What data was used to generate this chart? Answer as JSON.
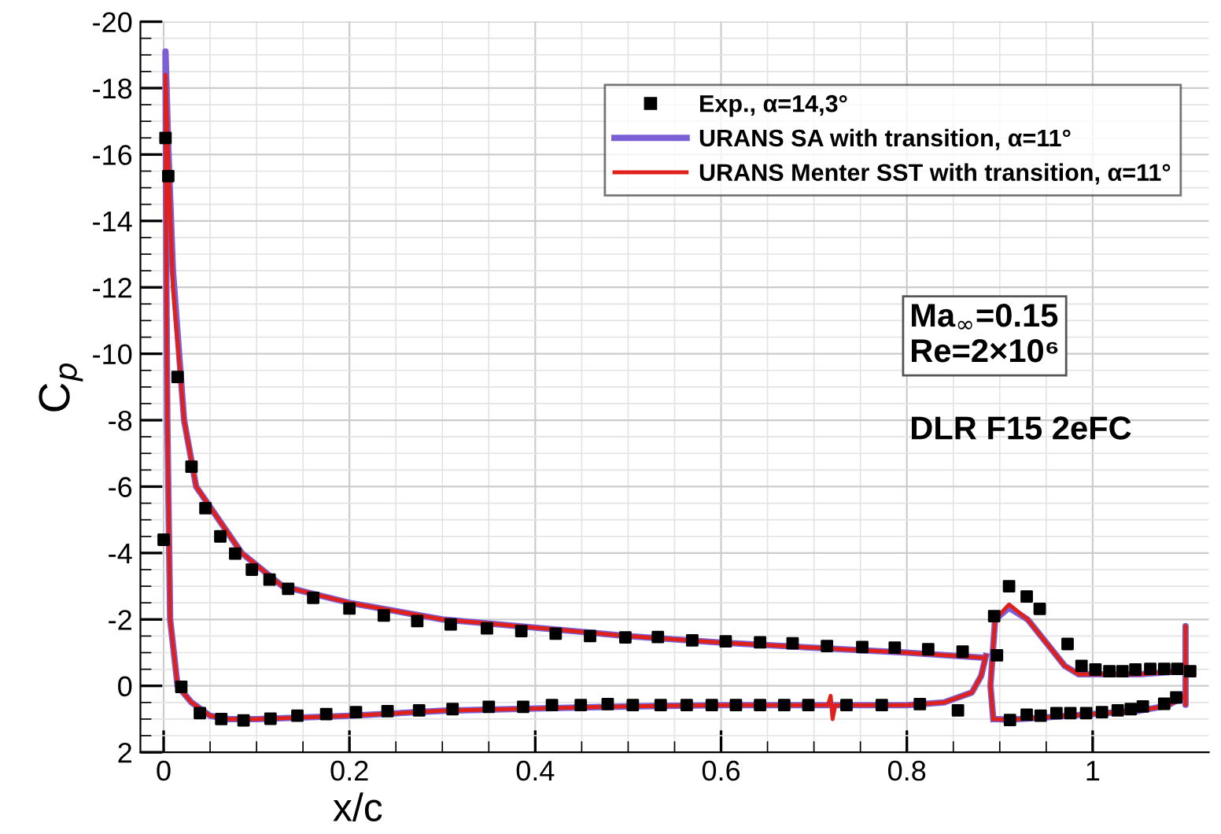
{
  "chart_data": {
    "type": "line",
    "xlabel": "x/c",
    "ylabel": "C$_{p}$",
    "xlim": [
      -0.025,
      1.125
    ],
    "ylim": [
      2,
      -20
    ],
    "xticks": [
      0,
      0.2,
      0.4,
      0.6,
      0.8,
      1
    ],
    "yticks": [
      -20,
      -18,
      -16,
      -14,
      -12,
      -10,
      -8,
      -6,
      -4,
      -2,
      0,
      2
    ],
    "grid": true,
    "legend": "top right",
    "annotations": [
      "Ma$_{∞}$=0.15\nRe=2×10⁶",
      "DLR F15 2eFC"
    ],
    "series": [
      {
        "name": "Exp., α=14,3°",
        "type": "scatter",
        "marker": "square",
        "color": "#000000",
        "x": [
          0.002,
          0.005,
          0.015,
          0.03,
          0.045,
          0.061,
          0.077,
          0.095,
          0.114,
          0.134,
          0.161,
          0.2,
          0.237,
          0.273,
          0.309,
          0.348,
          0.385,
          0.422,
          0.459,
          0.497,
          0.532,
          0.569,
          0.605,
          0.642,
          0.677,
          0.714,
          0.752,
          0.787,
          0.823,
          0.86,
          0.897,
          0.894,
          0.91,
          0.929,
          0.943,
          0.973,
          0.988,
          1.003,
          1.018,
          1.032,
          1.046,
          1.062,
          1.077,
          1.091,
          1.105,
          0.0,
          0.019,
          0.039,
          0.062,
          0.086,
          0.115,
          0.144,
          0.175,
          0.207,
          0.241,
          0.275,
          0.311,
          0.35,
          0.387,
          0.418,
          0.449,
          0.478,
          0.505,
          0.535,
          0.563,
          0.59,
          0.616,
          0.642,
          0.668,
          0.694,
          0.735,
          0.773,
          0.814,
          0.855,
          0.911,
          0.929,
          0.944,
          0.961,
          0.976,
          0.993,
          1.01,
          1.027,
          1.041,
          1.054,
          1.077,
          1.09
        ],
        "values": [
          -16.5,
          -15.35,
          -9.3,
          -6.6,
          -5.35,
          -4.5,
          -3.98,
          -3.5,
          -3.2,
          -2.92,
          -2.65,
          -2.33,
          -2.12,
          -1.95,
          -1.85,
          -1.73,
          -1.65,
          -1.57,
          -1.5,
          -1.46,
          -1.47,
          -1.37,
          -1.34,
          -1.31,
          -1.28,
          -1.2,
          -1.17,
          -1.15,
          -1.1,
          -1.03,
          -0.92,
          -2.1,
          -3.0,
          -2.69,
          -2.32,
          -1.26,
          -0.6,
          -0.49,
          -0.44,
          -0.44,
          -0.49,
          -0.51,
          -0.51,
          -0.51,
          -0.44,
          -4.4,
          0.03,
          0.82,
          1.0,
          1.04,
          0.99,
          0.9,
          0.85,
          0.79,
          0.76,
          0.74,
          0.7,
          0.63,
          0.63,
          0.58,
          0.58,
          0.55,
          0.58,
          0.58,
          0.58,
          0.58,
          0.58,
          0.58,
          0.58,
          0.58,
          0.58,
          0.58,
          0.55,
          0.74,
          1.03,
          0.87,
          0.9,
          0.82,
          0.82,
          0.82,
          0.79,
          0.74,
          0.7,
          0.62,
          0.54,
          0.35
        ]
      },
      {
        "name": "URANS SA with transition, α=11°",
        "color": "#7b5fd6",
        "x": [
          0.88,
          0.8,
          0.7,
          0.6,
          0.5,
          0.4,
          0.3,
          0.2,
          0.128,
          0.084,
          0.035,
          0.022,
          0.01,
          0.005,
          0.002,
          0.003,
          0.004,
          0.007,
          0.015,
          0.03,
          0.05,
          0.07,
          0.1,
          0.2,
          0.3,
          0.4,
          0.5,
          0.6,
          0.7,
          0.8,
          0.84,
          0.87,
          0.88,
          0.885,
          null,
          0.893,
          0.89,
          0.895,
          0.91,
          0.93,
          0.95,
          0.97,
          0.985,
          1.05,
          1.1,
          1.1,
          1.1,
          1.1,
          1.08,
          1.05,
          1.0,
          0.95,
          0.91,
          0.895
        ],
        "values": [
          -0.85,
          -1.0,
          -1.15,
          -1.3,
          -1.5,
          -1.75,
          -2.0,
          -2.5,
          -3.0,
          -4.0,
          -6.0,
          -8.0,
          -12.5,
          -16.2,
          -19.1,
          -12.0,
          -8.0,
          -2.0,
          0.0,
          0.5,
          0.9,
          1.0,
          1.0,
          0.9,
          0.75,
          0.68,
          0.62,
          0.58,
          0.58,
          0.58,
          0.5,
          0.2,
          -0.3,
          -0.9,
          null,
          1.0,
          0.0,
          -2.0,
          -2.35,
          -2.0,
          -1.3,
          -0.6,
          -0.35,
          -0.35,
          -0.45,
          -1.8,
          0.57,
          0.3,
          0.6,
          0.75,
          0.85,
          0.95,
          1.02,
          1.0
        ]
      },
      {
        "name": "URANS Menter SST with transition, α=11°",
        "color": "#e0201b",
        "x": [
          0.88,
          0.8,
          0.7,
          0.6,
          0.5,
          0.4,
          0.3,
          0.2,
          0.128,
          0.084,
          0.035,
          0.022,
          0.01,
          0.005,
          0.002,
          0.003,
          0.004,
          0.007,
          0.015,
          0.03,
          0.05,
          0.07,
          0.1,
          0.2,
          0.3,
          0.4,
          0.5,
          0.6,
          0.7,
          0.715,
          0.718,
          0.72,
          0.723,
          0.8,
          0.84,
          0.87,
          0.88,
          0.885,
          null,
          0.893,
          0.89,
          0.895,
          0.91,
          0.93,
          0.95,
          0.97,
          0.985,
          1.05,
          1.1,
          1.1,
          1.1,
          1.1,
          1.08,
          1.05,
          1.0,
          0.95,
          0.91,
          0.895
        ],
        "values": [
          -0.85,
          -1.0,
          -1.15,
          -1.3,
          -1.5,
          -1.75,
          -2.0,
          -2.5,
          -3.0,
          -4.0,
          -6.0,
          -8.0,
          -12.0,
          -15.8,
          -18.4,
          -12.0,
          -8.0,
          -2.0,
          0.0,
          0.5,
          0.9,
          1.0,
          1.0,
          0.9,
          0.75,
          0.68,
          0.62,
          0.58,
          0.58,
          0.58,
          0.3,
          1.0,
          0.58,
          0.58,
          0.5,
          0.2,
          -0.3,
          -0.9,
          null,
          1.0,
          0.0,
          -2.0,
          -2.45,
          -2.0,
          -1.3,
          -0.6,
          -0.35,
          -0.35,
          -0.45,
          -1.8,
          0.57,
          0.3,
          0.6,
          0.75,
          0.85,
          0.95,
          1.02,
          1.0
        ]
      }
    ]
  }
}
